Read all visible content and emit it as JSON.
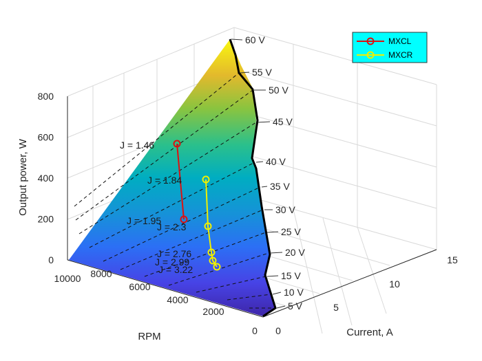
{
  "chart_data": {
    "type": "surface3d",
    "title": "",
    "xlabel": "Current, A",
    "ylabel": "RPM",
    "zlabel": "Output power, W",
    "x_ticks": [
      "0",
      "5",
      "10",
      "15"
    ],
    "y_ticks": [
      "0",
      "2000",
      "4000",
      "6000",
      "8000",
      "10000"
    ],
    "z_ticks": [
      "0",
      "200",
      "400",
      "600",
      "800"
    ],
    "xlim": [
      0,
      15
    ],
    "ylim": [
      0,
      10000
    ],
    "zlim": [
      0,
      800
    ],
    "grid": true,
    "colormap": "parula",
    "voltage_contours": [
      {
        "label": "5 V",
        "volts": 5
      },
      {
        "label": "10 V",
        "volts": 10
      },
      {
        "label": "15 V",
        "volts": 15
      },
      {
        "label": "20 V",
        "volts": 20
      },
      {
        "label": "25 V",
        "volts": 25
      },
      {
        "label": "30 V",
        "volts": 30
      },
      {
        "label": "35 V",
        "volts": 35
      },
      {
        "label": "40 V",
        "volts": 40
      },
      {
        "label": "45 V",
        "volts": 45
      },
      {
        "label": "50 V",
        "volts": 50
      },
      {
        "label": "55 V",
        "volts": 55
      },
      {
        "label": "60 V",
        "volts": 60
      }
    ],
    "series": [
      {
        "name": "MXCL",
        "color": "#dd1111",
        "points": [
          {
            "label": "J = 1.46",
            "current": 8.5,
            "rpm": 9200,
            "power": 570
          },
          {
            "label": "J = 1.95",
            "current": 7.0,
            "rpm": 6300,
            "power": 200
          }
        ]
      },
      {
        "name": "MXCR",
        "color": "#f0f000",
        "points": [
          {
            "label": "J = 1.84",
            "current": 7.6,
            "rpm": 7300,
            "power": 400
          },
          {
            "label": "J = 2.3",
            "current": 5.4,
            "rpm": 5500,
            "power": 160
          },
          {
            "label": "J = 2.76",
            "current": 4.2,
            "rpm": 4300,
            "power": 60
          },
          {
            "label": "J = 2.99",
            "current": 3.9,
            "rpm": 4000,
            "power": 35
          },
          {
            "label": "J = 3.22",
            "current": 3.5,
            "rpm": 3600,
            "power": 20
          }
        ]
      }
    ],
    "legend": {
      "placement": "top-right",
      "background": "#00ffff"
    }
  }
}
